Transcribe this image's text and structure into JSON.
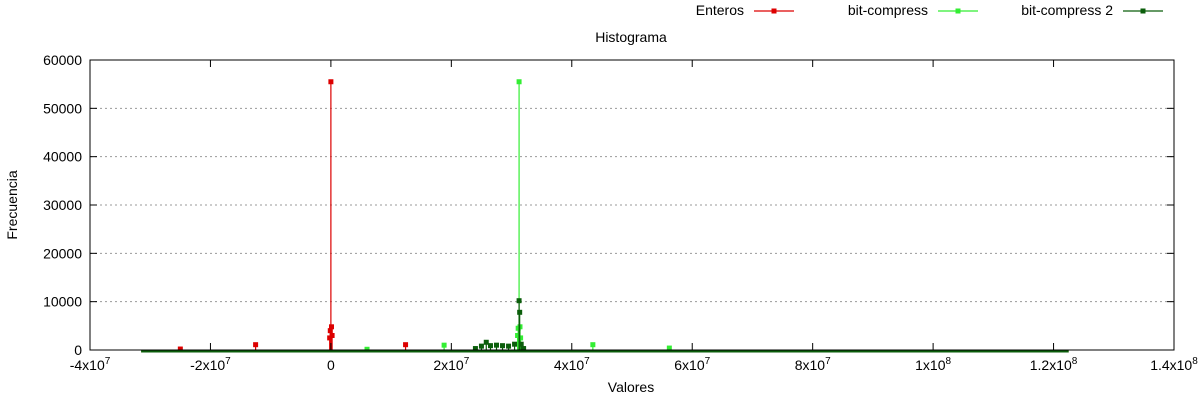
{
  "chart_data": {
    "type": "line",
    "title": "Histograma",
    "xlabel": "Valores",
    "ylabel": "Frecuencia",
    "xlim": [
      -40000000,
      140000000
    ],
    "ylim": [
      0,
      60000
    ],
    "grid": true,
    "legend_position": "top-right",
    "x_ticks": [
      {
        "value": -40000000,
        "mant": "-4x10",
        "exp": "7"
      },
      {
        "value": -20000000,
        "mant": "-2x10",
        "exp": "7"
      },
      {
        "value": 0,
        "mant": "0",
        "exp": ""
      },
      {
        "value": 20000000,
        "mant": "2x10",
        "exp": "7"
      },
      {
        "value": 40000000,
        "mant": "4x10",
        "exp": "7"
      },
      {
        "value": 60000000,
        "mant": "6x10",
        "exp": "7"
      },
      {
        "value": 80000000,
        "mant": "8x10",
        "exp": "7"
      },
      {
        "value": 100000000,
        "mant": "1x10",
        "exp": "8"
      },
      {
        "value": 120000000,
        "mant": "1.2x10",
        "exp": "8"
      },
      {
        "value": 140000000,
        "mant": "1.4x10",
        "exp": "8"
      }
    ],
    "y_ticks": [
      {
        "value": 0,
        "label": "0"
      },
      {
        "value": 10000,
        "label": "10000"
      },
      {
        "value": 20000,
        "label": "20000"
      },
      {
        "value": 30000,
        "label": "30000"
      },
      {
        "value": 40000,
        "label": "40000"
      },
      {
        "value": 50000,
        "label": "50000"
      },
      {
        "value": 60000,
        "label": "60000"
      }
    ],
    "baseline_range": [
      -31500000,
      122500000
    ],
    "series": [
      {
        "name": "Enteros",
        "color": "#dd0000",
        "points": [
          [
            -25000000,
            200
          ],
          [
            -12500000,
            1100
          ],
          [
            -200000,
            2500
          ],
          [
            -100000,
            4000
          ],
          [
            0,
            55500
          ],
          [
            100000,
            4800
          ],
          [
            200000,
            3000
          ],
          [
            12400000,
            1100
          ]
        ]
      },
      {
        "name": "bit-compress",
        "color": "#33ee33",
        "points": [
          [
            6000000,
            150
          ],
          [
            18800000,
            1000
          ],
          [
            31000000,
            3000
          ],
          [
            31100000,
            4500
          ],
          [
            31250000,
            55500
          ],
          [
            31400000,
            4800
          ],
          [
            31500000,
            2500
          ],
          [
            43500000,
            1100
          ],
          [
            56200000,
            400
          ]
        ]
      },
      {
        "name": "bit-compress 2",
        "color": "#0b5e0b",
        "points": [
          [
            24000000,
            300
          ],
          [
            25000000,
            800
          ],
          [
            25800000,
            1600
          ],
          [
            26500000,
            900
          ],
          [
            27500000,
            1000
          ],
          [
            28500000,
            900
          ],
          [
            29500000,
            800
          ],
          [
            30500000,
            1200
          ],
          [
            31250000,
            10200
          ],
          [
            31350000,
            7800
          ],
          [
            31600000,
            1200
          ],
          [
            32000000,
            300
          ]
        ]
      }
    ]
  }
}
